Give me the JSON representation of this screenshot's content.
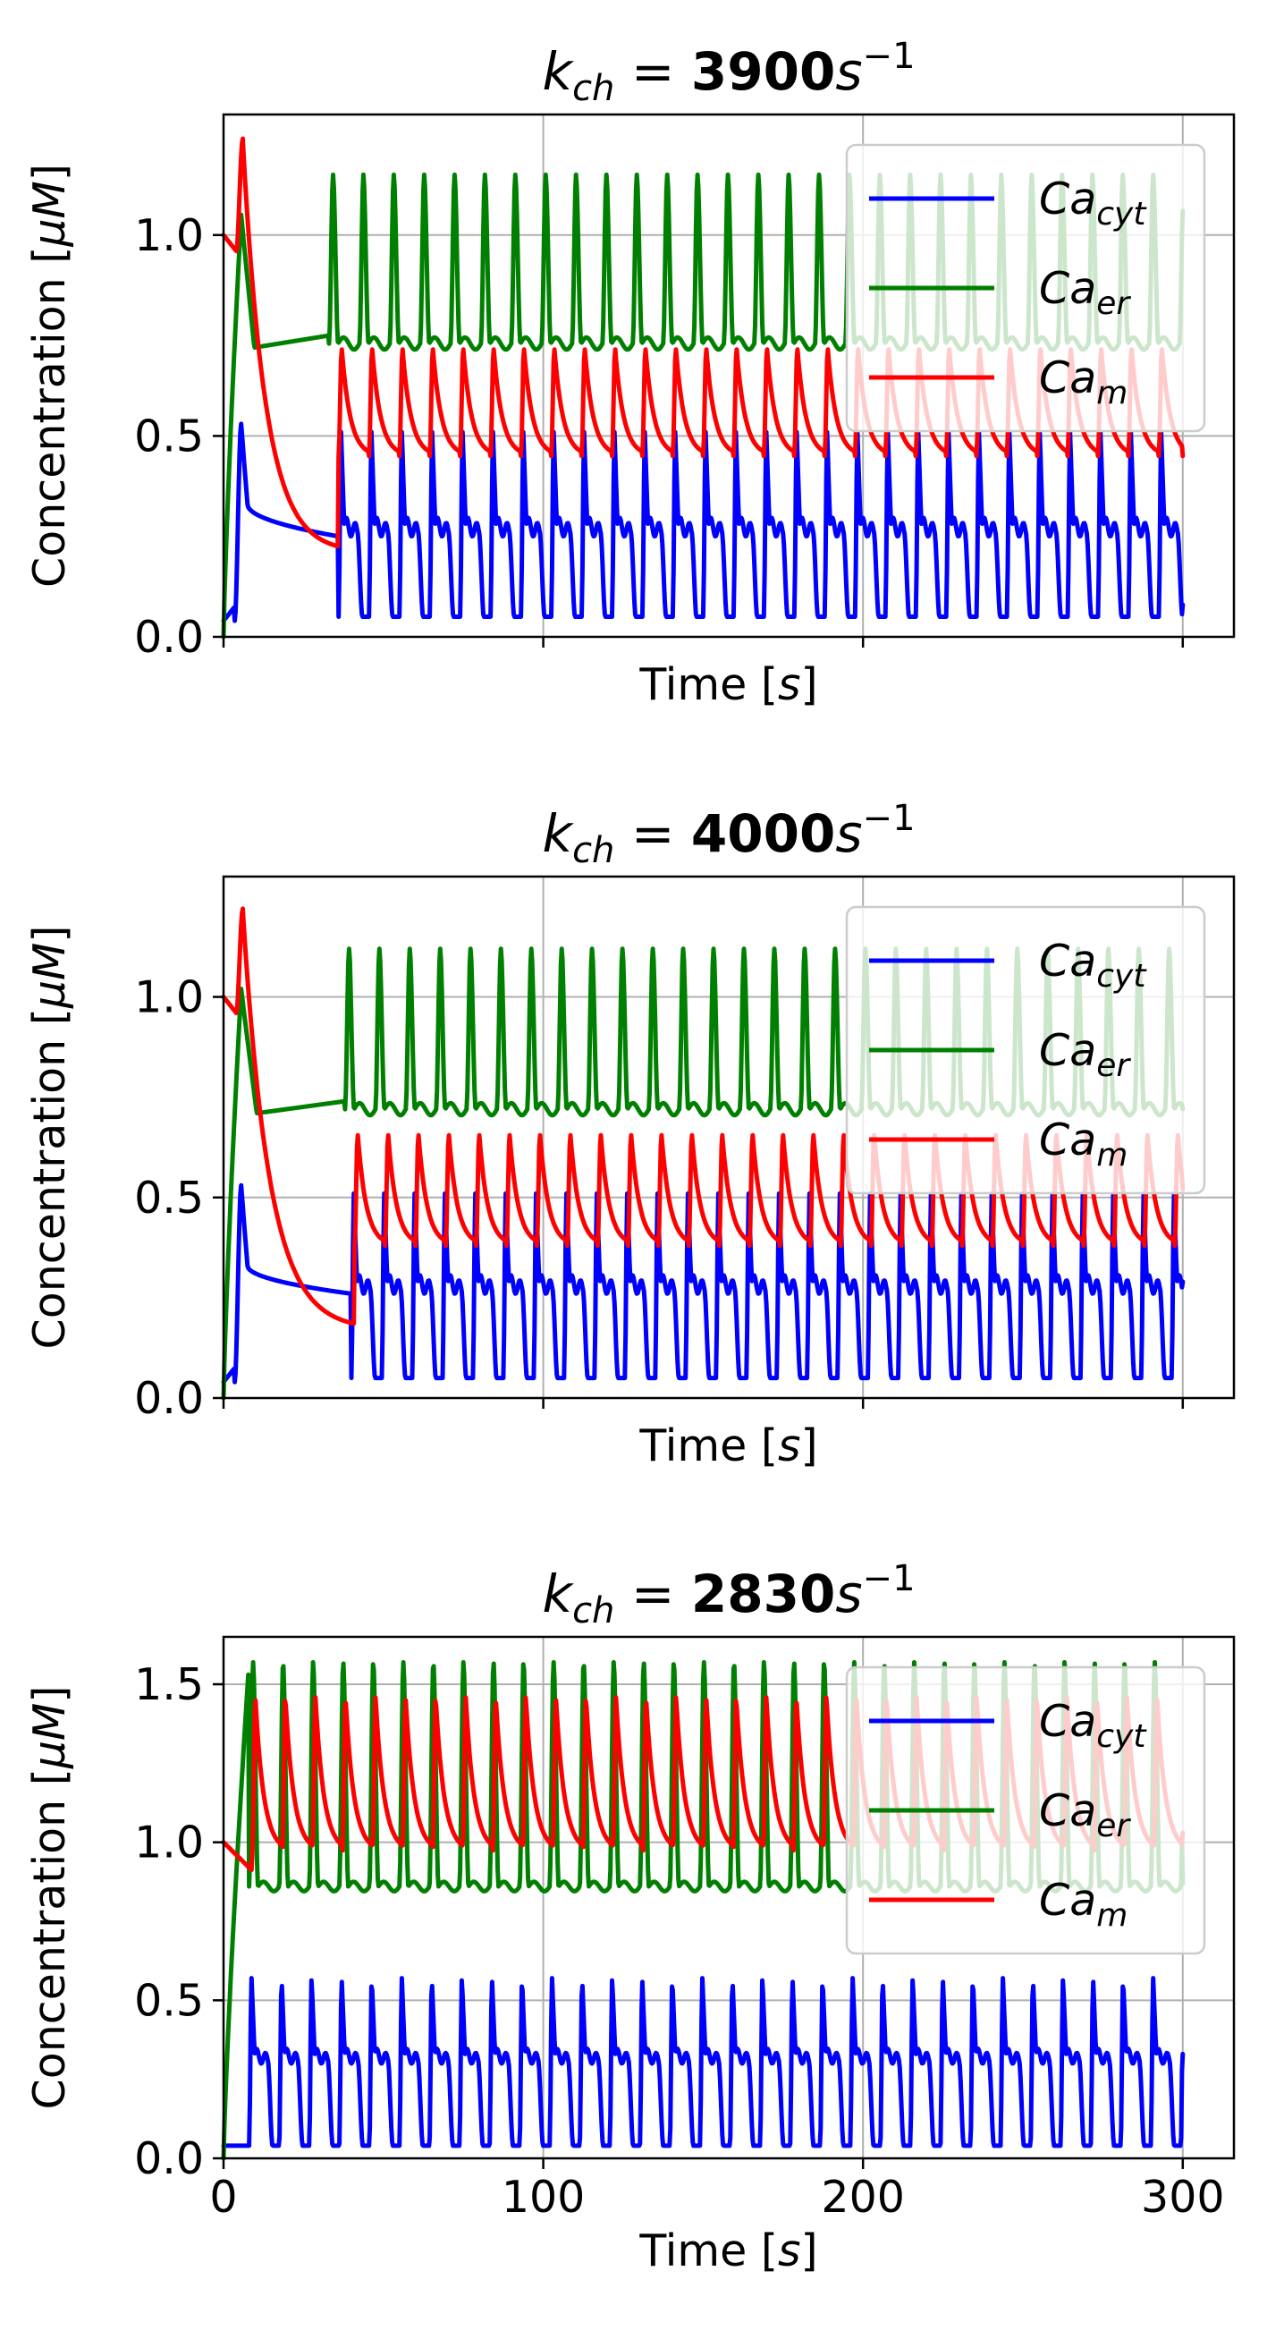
{
  "chart_data": [
    {
      "type": "line",
      "title": {
        "lhs_base": "k",
        "lhs_sub": "ch",
        "eq": " = ",
        "value": "3900",
        "unit_base": "s",
        "unit_exp": "−1"
      },
      "xlabel": {
        "pre": "Time [",
        "var": "s",
        "post": "]"
      },
      "ylabel": {
        "pre": "Concentration [",
        "var": "μM",
        "post": "]"
      },
      "xlim": [
        0,
        316
      ],
      "ylim": [
        0,
        1.3
      ],
      "xticks": [
        0,
        100,
        200,
        300
      ],
      "xtick_labels": [
        "",
        "",
        "",
        ""
      ],
      "yticks": [
        0,
        0.5,
        1.0
      ],
      "ytick_labels": [
        "0.0",
        "0.5",
        "1.0"
      ],
      "grid": true,
      "legend_position": "upper-right",
      "series": [
        {
          "name_base": "Ca",
          "name_sub": "cyt",
          "color": "#0000ff",
          "model": {
            "y0": 0.04,
            "first_spike_t": 5.5,
            "first_spike_peak": 0.53,
            "plateau_start": 0.33,
            "plateau_end": 0.25,
            "onset_t": 36,
            "period": 9.5,
            "peak": 0.51,
            "trough": 0.05,
            "mid": 0.28,
            "end_t": 300,
            "end_y": 0.08
          }
        },
        {
          "name_base": "Ca",
          "name_sub": "er",
          "color": "#008000",
          "model": {
            "y0": 0.0,
            "rise_to": 1.05,
            "rise_t": 5.5,
            "settle": 0.72,
            "settle_end": 0.75,
            "onset_t": 33,
            "period": 9.5,
            "peak": 1.15,
            "trough": 0.73,
            "end_t": 300,
            "end_y": 1.06
          }
        },
        {
          "name_base": "Ca",
          "name_sub": "m",
          "color": "#ff0000",
          "model": {
            "y0": 1.0,
            "dip": 0.96,
            "spike_t": 6,
            "spike_peak": 1.24,
            "decay_to": 0.21,
            "onset_t": 36,
            "period": 9.5,
            "peak": 0.72,
            "trough": 0.45,
            "end_t": 300,
            "end_y": 0.45
          }
        }
      ]
    },
    {
      "type": "line",
      "title": {
        "lhs_base": "k",
        "lhs_sub": "ch",
        "eq": " = ",
        "value": "4000",
        "unit_base": "s",
        "unit_exp": "−1"
      },
      "xlabel": {
        "pre": "Time [",
        "var": "s",
        "post": "]"
      },
      "ylabel": {
        "pre": "Concentration [",
        "var": "μM",
        "post": "]"
      },
      "xlim": [
        0,
        316
      ],
      "ylim": [
        0,
        1.3
      ],
      "xticks": [
        0,
        100,
        200,
        300
      ],
      "xtick_labels": [
        "",
        "",
        "",
        ""
      ],
      "yticks": [
        0,
        0.5,
        1.0
      ],
      "ytick_labels": [
        "0.0",
        "0.5",
        "1.0"
      ],
      "grid": true,
      "legend_position": "upper-right",
      "series": [
        {
          "name_base": "Ca",
          "name_sub": "cyt",
          "color": "#0000ff",
          "model": {
            "y0": 0.04,
            "first_spike_t": 5.5,
            "first_spike_peak": 0.53,
            "plateau_start": 0.33,
            "plateau_end": 0.26,
            "onset_t": 40,
            "period": 9.5,
            "peak": 0.51,
            "trough": 0.05,
            "mid": 0.29,
            "end_t": 300,
            "end_y": 0.29
          }
        },
        {
          "name_base": "Ca",
          "name_sub": "er",
          "color": "#008000",
          "model": {
            "y0": 0.0,
            "rise_to": 1.02,
            "rise_t": 5.5,
            "settle": 0.71,
            "settle_end": 0.74,
            "onset_t": 38,
            "period": 9.5,
            "peak": 1.12,
            "trough": 0.72,
            "end_t": 300,
            "end_y": 0.72
          }
        },
        {
          "name_base": "Ca",
          "name_sub": "m",
          "color": "#ff0000",
          "model": {
            "y0": 1.0,
            "dip": 0.96,
            "spike_t": 6,
            "spike_peak": 1.22,
            "decay_to": 0.17,
            "onset_t": 41,
            "period": 9.5,
            "peak": 0.66,
            "trough": 0.38,
            "end_t": 300,
            "end_y": 0.52
          }
        }
      ]
    },
    {
      "type": "line",
      "title": {
        "lhs_base": "k",
        "lhs_sub": "ch",
        "eq": " = ",
        "value": "2830",
        "unit_base": "s",
        "unit_exp": "−1"
      },
      "xlabel": {
        "pre": "Time [",
        "var": "s",
        "post": "]"
      },
      "ylabel": {
        "pre": "Concentration [",
        "var": "μM",
        "post": "]"
      },
      "xlim": [
        0,
        316
      ],
      "ylim": [
        0,
        1.65
      ],
      "xticks": [
        0,
        100,
        200,
        300
      ],
      "xtick_labels": [
        "0",
        "100",
        "200",
        "300"
      ],
      "yticks": [
        0,
        0.5,
        1.0,
        1.5
      ],
      "ytick_labels": [
        "0.0",
        "0.5",
        "1.0",
        "1.5"
      ],
      "grid": true,
      "legend_position": "upper-right",
      "series": [
        {
          "name_base": "Ca",
          "name_sub": "cyt",
          "color": "#0000ff",
          "model": {
            "y0": 0.04,
            "onset_t": 8,
            "period": 9.4,
            "peak": 0.57,
            "trough": 0.04,
            "mid": 0.33,
            "end_t": 300,
            "end_y": 0.33
          }
        },
        {
          "name_base": "Ca",
          "name_sub": "er",
          "color": "#008000",
          "model": {
            "y0": 0.0,
            "rise_to": 1.57,
            "rise_t": 8,
            "onset_t": 8,
            "period": 9.4,
            "peak": 1.57,
            "trough": 0.86,
            "end_t": 300,
            "end_y": 0.87
          }
        },
        {
          "name_base": "Ca",
          "name_sub": "m",
          "color": "#ff0000",
          "model": {
            "y0": 1.0,
            "onset_t": 9,
            "period": 9.4,
            "peak": 1.46,
            "trough": 0.97,
            "end_t": 300,
            "end_y": 1.03
          }
        }
      ]
    }
  ]
}
